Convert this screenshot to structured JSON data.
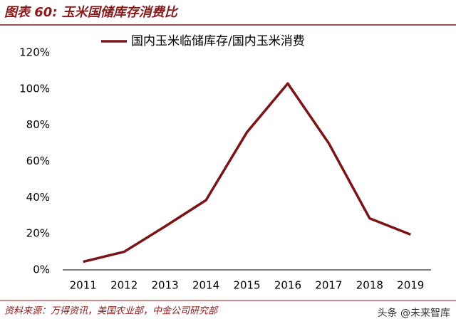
{
  "chart_data": {
    "type": "line",
    "title": "图表 60: 玉米国储库存消费比",
    "categories": [
      "2011",
      "2012",
      "2013",
      "2014",
      "2015",
      "2016",
      "2017",
      "2018",
      "2019"
    ],
    "series": [
      {
        "name": "国内玉米临储库存/国内玉米消费",
        "color": "#7b1416",
        "values": [
          4.5,
          10,
          24,
          38.5,
          76,
          103,
          70,
          28.5,
          19.5
        ]
      }
    ],
    "ylim": [
      0,
      120
    ],
    "yticks": [
      {
        "value": 0,
        "label": "0%"
      },
      {
        "value": 20,
        "label": "20%"
      },
      {
        "value": 40,
        "label": "40%"
      },
      {
        "value": 60,
        "label": "60%"
      },
      {
        "value": 80,
        "label": "80%"
      },
      {
        "value": 100,
        "label": "100%"
      },
      {
        "value": 120,
        "label": "120%"
      }
    ],
    "grid": false,
    "source": "资料来源：万得资讯，美国农业部，中金公司研究部",
    "watermark": "头条 @未来智库"
  }
}
